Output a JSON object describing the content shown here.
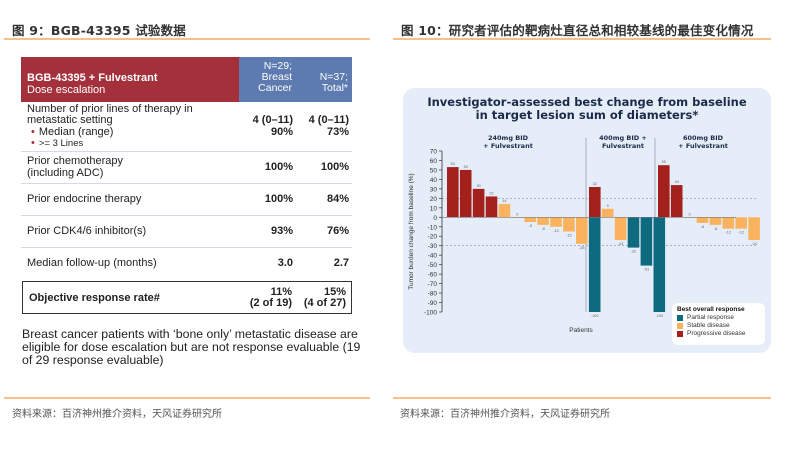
{
  "left_figure": {
    "title": "图 9：BGB-43395 试验数据",
    "table": {
      "header": {
        "main_bold": "BGB-43395 + Fulvestrant",
        "main_sub": "Dose escalation",
        "col1": "N=29; Breast Cancer",
        "col1_lines": [
          "N=29;",
          "Breast",
          "Cancer"
        ],
        "col2_lines": [
          "N=37;",
          "Total*"
        ]
      },
      "rows": [
        {
          "label_lines": [
            "Number of prior lines of therapy in",
            "metastatic setting"
          ],
          "bullets": [
            "Median (range)",
            ">= 3 Lines"
          ],
          "col1": [
            "4 (0–11)",
            "90%"
          ],
          "col2": [
            "4 (0–11)",
            "73%"
          ]
        },
        {
          "label_lines": [
            "Prior chemotherapy",
            "(including ADC)"
          ],
          "col1": "100%",
          "col2": "100%"
        },
        {
          "label_lines": [
            "Prior endocrine therapy"
          ],
          "col1": "100%",
          "col2": "84%"
        },
        {
          "label_lines": [
            "Prior CDK4/6 inhibitor(s)"
          ],
          "col1": "93%",
          "col2": "76%"
        },
        {
          "label_lines": [
            "Median follow-up (months)"
          ],
          "col1": "3.0",
          "col2": "2.7"
        }
      ],
      "orr": {
        "label": "Objective response rate#",
        "col1": [
          "11%",
          "(2 of 19)"
        ],
        "col2": [
          "15%",
          "(4 of 27)"
        ]
      }
    },
    "note": "Breast cancer patients with ‘bone only’ metastatic disease are eligible for dose escalation but are not response evaluable (19 of 29 response evaluable)",
    "source": "资料来源：百济神州推介资料，天风证券研究所"
  },
  "right_figure": {
    "title": "图 10：研究者评估的靶病灶直径总和相较基线的最佳变化情况",
    "source": "资料来源：百济神州推介资料，天风证券研究所"
  },
  "colors": {
    "table_header_red": "#a4303b",
    "table_header_blue": "#5d7bb1",
    "partial_response": "#0e6a7e",
    "stable_disease": "#fbb25e",
    "progressive_disease": "#a3201c",
    "chart_bg": "#e5edf8",
    "rule_orange": "#f7c08a"
  },
  "chart_data": {
    "type": "bar",
    "title": "Investigator-assessed best change from baseline in target lesion sum of diameters*",
    "title_lines": [
      "Investigator-assessed best change from baseline",
      "in target lesion sum of diameters*"
    ],
    "xlabel": "Patients",
    "ylabel": "Tumor burden change from baseline (%)",
    "ylim": [
      -100,
      70
    ],
    "yticks": [
      70,
      60,
      50,
      40,
      30,
      20,
      10,
      0,
      -10,
      -20,
      -30,
      -40,
      -50,
      -60,
      -70,
      -80,
      -90,
      -100
    ],
    "reference_lines": [
      20,
      -30
    ],
    "groups": [
      {
        "name": "240mg BID + Fulvestrant",
        "name_lines": [
          "240mg BID",
          "+ Fulvestrant"
        ],
        "values": [
          53,
          50,
          30,
          22,
          14,
          0,
          -5,
          -8,
          -10,
          -15,
          -28,
          -100
        ],
        "labels": [
          "53",
          "50",
          "30",
          "22",
          "14",
          "0",
          "-5",
          "-8",
          "-10",
          "-15",
          "-28",
          "-100"
        ],
        "response": [
          "PD",
          "PD",
          "PD",
          "PD",
          "SD",
          "SD",
          "SD",
          "SD",
          "SD",
          "SD",
          "SD",
          "PR"
        ]
      },
      {
        "name": "400mg BID + Fulvestrant",
        "name_lines": [
          "400mg BID +",
          "Fulvestrant"
        ],
        "values": [
          32,
          9,
          -24,
          -32,
          -51,
          -100
        ],
        "labels": [
          "32",
          "9",
          "-24",
          "-32",
          "-51",
          "-100"
        ],
        "response": [
          "PD",
          "SD",
          "SD",
          "PR",
          "PR",
          "PR"
        ]
      },
      {
        "name": "600mg BID + Fulvestrant",
        "name_lines": [
          "600mg BID",
          "+ Fulvestrant"
        ],
        "values": [
          55,
          34,
          0,
          -6,
          -8,
          -12,
          -12,
          -24
        ],
        "labels": [
          "55",
          "34",
          "0",
          "-6",
          "-8",
          "-12",
          "-12",
          "-24"
        ],
        "response": [
          "PD",
          "PD",
          "SD",
          "SD",
          "SD",
          "SD",
          "SD",
          "SD"
        ]
      }
    ],
    "legend": {
      "title": "Best overall response",
      "placement": "bottom-right",
      "entries": [
        {
          "key": "PR",
          "label": "Partial response"
        },
        {
          "key": "SD",
          "label": "Stable disease"
        },
        {
          "key": "PD",
          "label": "Progressive disease"
        }
      ]
    }
  }
}
